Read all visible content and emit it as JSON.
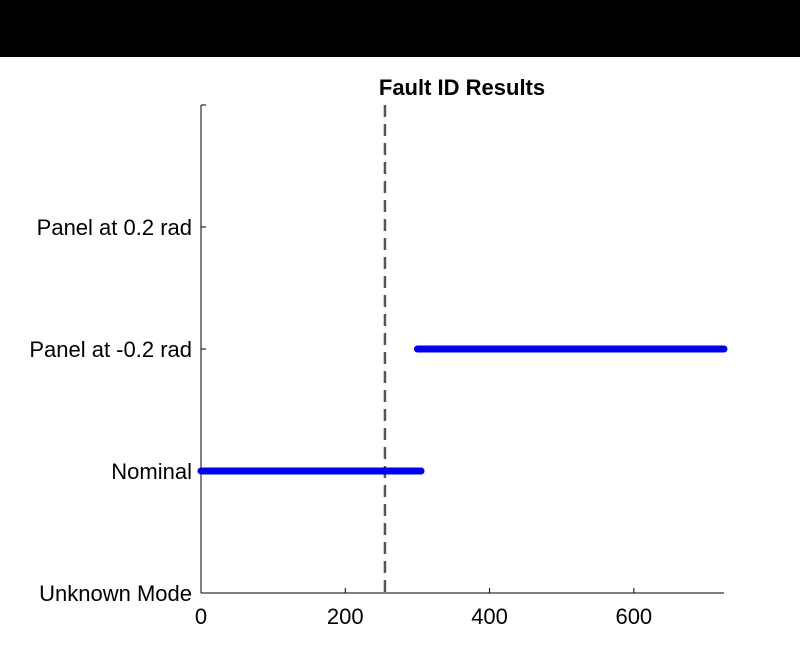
{
  "chart_data": {
    "type": "line",
    "title": "Fault ID Results",
    "xlabel": "",
    "ylabel": "",
    "xlim": [
      0,
      725
    ],
    "x_ticks": [
      0,
      200,
      400,
      600
    ],
    "y_categories": [
      "Unknown Mode",
      "Nominal",
      "Panel at -0.2 rad",
      "Panel at 0.2 rad"
    ],
    "ylim": [
      0,
      4
    ],
    "grid": false,
    "vline": {
      "x": 255,
      "style": "dashed",
      "color": "#555555"
    },
    "series": [
      {
        "color": "#0000ee",
        "segments": [
          {
            "x": [
              0,
              305
            ],
            "y": 1
          },
          {
            "x": [
              300,
              725
            ],
            "y": 2
          }
        ]
      }
    ]
  }
}
